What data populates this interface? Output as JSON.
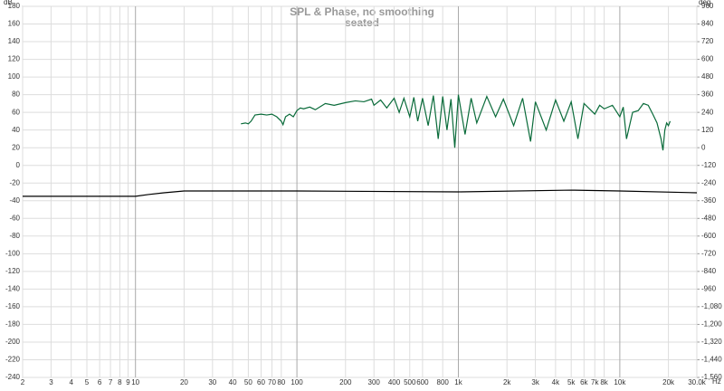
{
  "chart_data": {
    "type": "line",
    "title": "SPL & Phase, no smoothing",
    "subtitle": "seated",
    "y_label": "dB",
    "y2_label": "deg",
    "x_label": "Hz",
    "xscale": "log",
    "grid": true,
    "xlim": [
      2,
      30000
    ],
    "xticks": [
      2,
      3,
      4,
      5,
      6,
      7,
      8,
      9,
      10,
      20,
      30,
      40,
      50,
      60,
      70,
      80,
      100,
      200,
      300,
      400,
      500,
      600,
      800,
      {
        "value": 1000,
        "label": "1k"
      },
      {
        "value": 2000,
        "label": "2k"
      },
      {
        "value": 3000,
        "label": "3k"
      },
      {
        "value": 4000,
        "label": "4k"
      },
      {
        "value": 5000,
        "label": "5k"
      },
      {
        "value": 6000,
        "label": "6k"
      },
      {
        "value": 7000,
        "label": "7k"
      },
      {
        "value": 8000,
        "label": "8k"
      },
      {
        "value": 10000,
        "label": "10k"
      },
      {
        "value": 20000,
        "label": "20k"
      },
      {
        "value": 30000,
        "label": "30.0k"
      }
    ],
    "ylim": [
      -240,
      180
    ],
    "yticks": [
      180,
      160,
      140,
      120,
      100,
      80,
      60,
      40,
      20,
      0,
      -20,
      -40,
      -60,
      -80,
      -100,
      -120,
      -140,
      -160,
      -180,
      -200,
      -220,
      -240
    ],
    "y2lim": [
      -1560,
      960
    ],
    "y2ticks": [
      960,
      840,
      720,
      600,
      480,
      360,
      240,
      120,
      0,
      -120,
      -240,
      -360,
      -480,
      -600,
      -720,
      -840,
      -960,
      {
        "value": -1080,
        "label": "-1,080"
      },
      {
        "value": -1200,
        "label": "-1,200"
      },
      {
        "value": -1320,
        "label": "-1,320"
      },
      {
        "value": -1440,
        "label": "-1,440"
      },
      {
        "value": -1560,
        "label": "-1,560"
      }
    ],
    "series": [
      {
        "color": "#0a6b3a",
        "x": [
          45,
          48,
          50,
          52,
          55,
          60,
          65,
          70,
          75,
          80,
          82,
          85,
          90,
          95,
          100,
          105,
          110,
          120,
          130,
          150,
          170,
          200,
          230,
          260,
          290,
          300,
          330,
          360,
          400,
          430,
          460,
          500,
          530,
          560,
          600,
          650,
          700,
          750,
          800,
          850,
          900,
          950,
          1000,
          1100,
          1200,
          1300,
          1500,
          1700,
          1900,
          2200,
          2500,
          2800,
          3000,
          3500,
          4000,
          4500,
          5000,
          5500,
          6000,
          7000,
          7500,
          8000,
          9000,
          10000,
          10500,
          11000,
          12000,
          13000,
          14000,
          15000,
          16000,
          17000,
          18000,
          18500,
          19000,
          19500,
          20000,
          20500
        ],
        "values": [
          47,
          48,
          47,
          50,
          57,
          58,
          57,
          58,
          55,
          50,
          46,
          55,
          58,
          55,
          62,
          65,
          64,
          66,
          63,
          70,
          68,
          71,
          73,
          72,
          75,
          68,
          74,
          65,
          76,
          60,
          76,
          55,
          77,
          50,
          76,
          45,
          79,
          30,
          78,
          40,
          75,
          20,
          80,
          35,
          76,
          48,
          78,
          55,
          75,
          45,
          76,
          27,
          72,
          40,
          74,
          50,
          72,
          30,
          70,
          58,
          68,
          64,
          68,
          55,
          66,
          30,
          60,
          62,
          70,
          68,
          58,
          48,
          30,
          17,
          40,
          48,
          45,
          50
        ]
      },
      {
        "color": "#000000",
        "x": [
          2,
          10,
          12,
          15,
          20,
          100,
          1000,
          5000,
          10000,
          30000
        ],
        "values": [
          -35,
          -35,
          -33,
          -31,
          -29,
          -29,
          -30,
          -28,
          -29,
          -31
        ]
      }
    ]
  }
}
